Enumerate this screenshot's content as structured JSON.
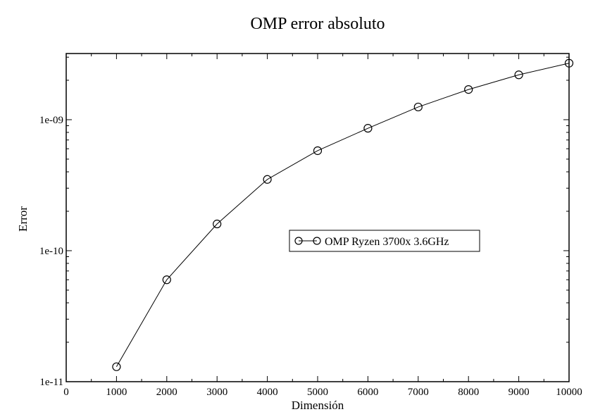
{
  "chart_data": {
    "type": "line",
    "title": "OMP error absoluto",
    "xlabel": "Dimensión",
    "ylabel": "Error",
    "xlim": [
      0,
      10000
    ],
    "ylim": [
      1e-11,
      3.2e-09
    ],
    "yscale": "log",
    "grid": false,
    "legend_position": "center-right",
    "x_ticks": [
      0,
      1000,
      2000,
      3000,
      4000,
      5000,
      6000,
      7000,
      8000,
      9000,
      10000
    ],
    "x_tick_labels": [
      "0",
      "1000",
      "2000",
      "3000",
      "4000",
      "5000",
      "6000",
      "7000",
      "8000",
      "9000",
      "10000"
    ],
    "y_ticks": [
      1e-11,
      1e-10,
      1e-09
    ],
    "y_tick_labels": [
      "1e-11",
      "1e-10",
      "1e-09"
    ],
    "series": [
      {
        "name": "OMP Ryzen 3700x 3.6GHz",
        "marker": "circle",
        "color": "#000000",
        "x": [
          1000,
          2000,
          3000,
          4000,
          5000,
          6000,
          7000,
          8000,
          9000,
          10000
        ],
        "y": [
          1.3e-11,
          6e-11,
          1.6e-10,
          3.5e-10,
          5.8e-10,
          8.6e-10,
          1.25e-09,
          1.7e-09,
          2.2e-09,
          2.7e-09
        ]
      }
    ]
  }
}
